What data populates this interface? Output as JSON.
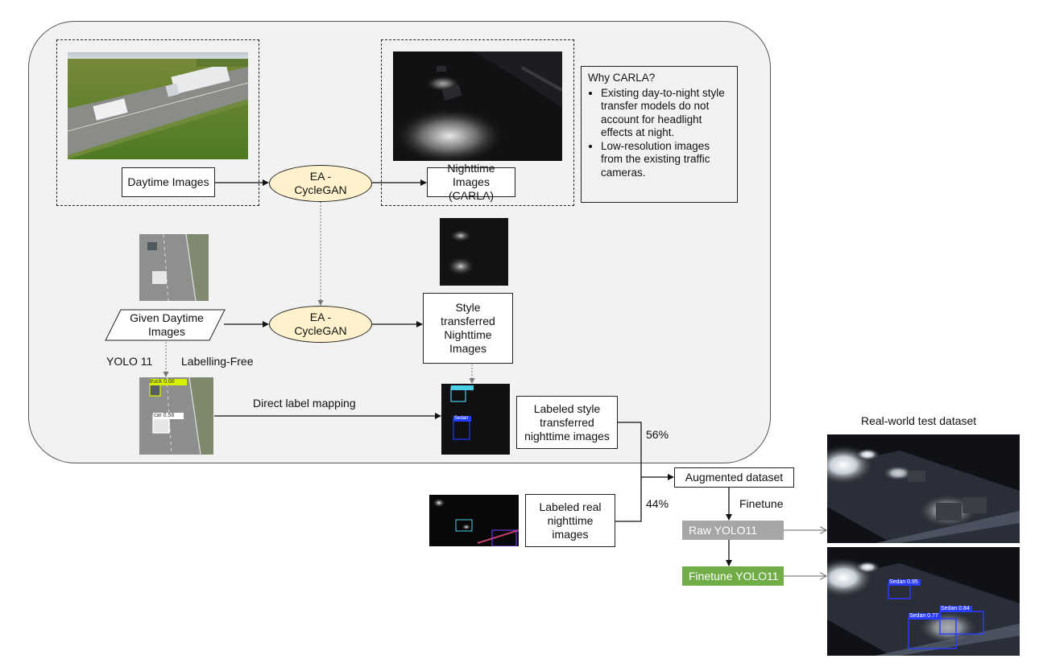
{
  "nodes": {
    "daytime_images": "Daytime Images",
    "ea_cyclegan_top": "EA - CycleGAN",
    "nighttime_carla": "Nighttime Images (CARLA)",
    "given_daytime": "Given Daytime Images",
    "ea_cyclegan_mid": "EA - CycleGAN",
    "style_transferred": "Style transferred Nighttime Images",
    "labeled_style": "Labeled style transferred nighttime images",
    "labeled_real": "Labeled real nighttime images",
    "augmented": "Augmented dataset",
    "raw_yolo": "Raw YOLO11",
    "finetune_yolo": "Finetune YOLO11"
  },
  "why_carla": {
    "title": "Why CARLA?",
    "bullets": [
      "Existing day-to-night style transfer models do not account for headlight effects at night.",
      "Low-resolution images from the existing traffic cameras."
    ]
  },
  "edge_labels": {
    "yolo11": "YOLO 11",
    "labelling_free": "Labelling-Free",
    "direct_mapping": "Direct label mapping",
    "pct_56": "56%",
    "pct_44": "44%",
    "finetune": "Finetune"
  },
  "detections": {
    "truck": "truck 0.66",
    "car": "car 0.58",
    "sedan_small": "Sedan",
    "sedan_1": "Sedan 0.95",
    "sedan_2": "Sedan 0.84",
    "sedan_3": "Sedan 0.77"
  },
  "test_title": "Real-world test dataset",
  "colors": {
    "ellipse_fill": "#fff2cc",
    "raw_yolo": "#a6a6a6",
    "finetune_yolo": "#70ad47",
    "panel": "#f2f2f2"
  }
}
